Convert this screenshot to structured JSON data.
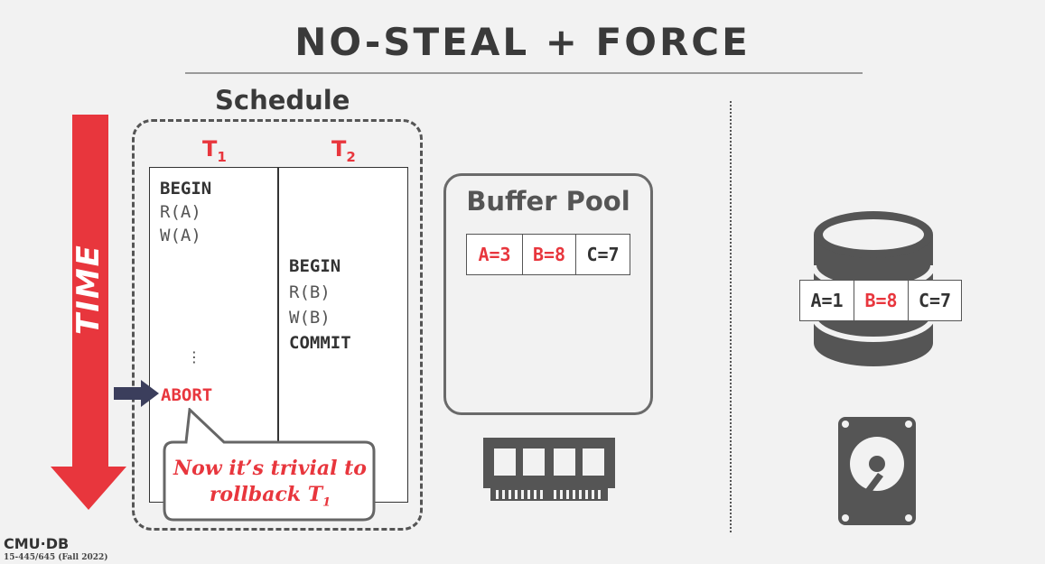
{
  "title": "NO-STEAL + FORCE",
  "schedule": {
    "label": "Schedule",
    "t1": {
      "letter": "T",
      "sub": "1",
      "ops": [
        "BEGIN",
        "R(A)",
        "W(A)",
        "⋮",
        "ABORT"
      ]
    },
    "t2": {
      "letter": "T",
      "sub": "2",
      "ops": [
        "BEGIN",
        "R(B)",
        "W(B)",
        "COMMIT"
      ]
    }
  },
  "time_label": "TIME",
  "callout": {
    "line1": "Now it’s trivial to",
    "line2": "rollback T",
    "line2_sub": "1"
  },
  "buffer_pool": {
    "label": "Buffer Pool",
    "cells": [
      "A=3",
      "B=8",
      "C=7"
    ]
  },
  "disk": {
    "cells": [
      "A=1",
      "B=8",
      "C=7"
    ]
  },
  "footer": {
    "logo": "CMU·DB",
    "course": "15-445/645 (Fall 2022)"
  },
  "colors": {
    "accent_red": "#e8363d",
    "dark_gray": "#3a3a3a",
    "arrow_navy": "#3b3e5c",
    "icon_gray": "#555555"
  },
  "icons": [
    "database-icon",
    "memory-chip-icon",
    "hard-drive-icon",
    "pointer-arrow-icon",
    "time-arrow-icon"
  ]
}
